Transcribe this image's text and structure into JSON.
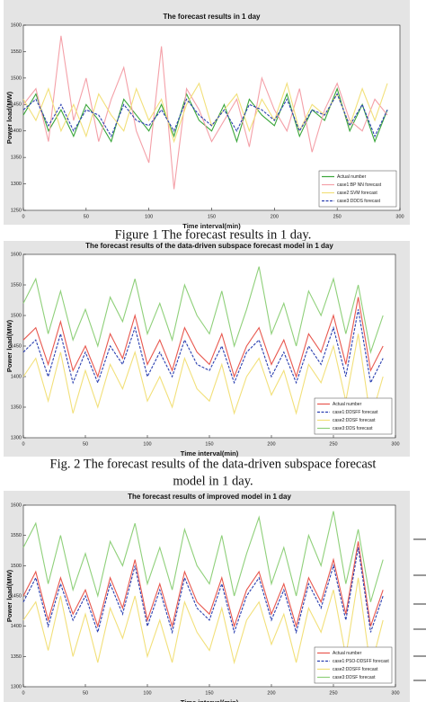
{
  "chart_data": [
    {
      "type": "line",
      "title": "The forecast results in 1 day",
      "xlabel": "Time interval(min)",
      "ylabel": "Power load(MW)",
      "caption": [
        "Figure 1 The forecast results in 1 day."
      ],
      "x": [
        0,
        10,
        20,
        30,
        40,
        50,
        60,
        70,
        80,
        90,
        100,
        110,
        120,
        130,
        140,
        150,
        160,
        170,
        180,
        190,
        200,
        210,
        220,
        230,
        240,
        250,
        260,
        270,
        280,
        290
      ],
      "xlim": [
        0,
        300
      ],
      "xticks": [
        0,
        50,
        100,
        150,
        200,
        250,
        300
      ],
      "ylim": [
        1250,
        1600
      ],
      "yticks": [
        1250,
        1300,
        1350,
        1400,
        1450,
        1500,
        1550,
        1600
      ],
      "series": [
        {
          "name": "Actual number",
          "color": "#3aa63a",
          "dash": false,
          "values": [
            1430,
            1470,
            1400,
            1440,
            1390,
            1450,
            1420,
            1380,
            1460,
            1430,
            1400,
            1450,
            1390,
            1470,
            1420,
            1400,
            1450,
            1380,
            1460,
            1430,
            1410,
            1470,
            1390,
            1440,
            1420,
            1480,
            1400,
            1450,
            1380,
            1440
          ]
        },
        {
          "name": "case1:BP NN forecast",
          "color": "#f4a0a8",
          "dash": false,
          "values": [
            1450,
            1480,
            1380,
            1580,
            1420,
            1500,
            1380,
            1460,
            1520,
            1400,
            1340,
            1560,
            1290,
            1480,
            1440,
            1380,
            1420,
            1460,
            1370,
            1500,
            1440,
            1400,
            1480,
            1360,
            1440,
            1490,
            1420,
            1400,
            1460,
            1430
          ]
        },
        {
          "name": "case2:SVM forecast",
          "color": "#f2e07a",
          "dash": false,
          "values": [
            1460,
            1420,
            1480,
            1400,
            1450,
            1390,
            1470,
            1430,
            1400,
            1480,
            1420,
            1460,
            1380,
            1450,
            1490,
            1410,
            1440,
            1470,
            1400,
            1460,
            1420,
            1490,
            1400,
            1450,
            1430,
            1470,
            1410,
            1480,
            1420,
            1490
          ]
        },
        {
          "name": "case3:DDDS forecast",
          "color": "#2a3fb0",
          "dash": true,
          "values": [
            1440,
            1460,
            1410,
            1450,
            1400,
            1440,
            1430,
            1390,
            1450,
            1420,
            1410,
            1440,
            1400,
            1460,
            1430,
            1410,
            1440,
            1400,
            1450,
            1440,
            1420,
            1460,
            1400,
            1440,
            1430,
            1470,
            1410,
            1450,
            1390,
            1440
          ]
        }
      ]
    },
    {
      "type": "line",
      "title": "The forecast results of the data-driven subspace forecast model in 1 day",
      "xlabel": "Time interval(min)",
      "ylabel": "Power load(MW)",
      "caption": [
        "Fig. 2 The forecast results of the data-driven subspace forecast",
        "model in 1 day."
      ],
      "x": [
        0,
        10,
        20,
        30,
        40,
        50,
        60,
        70,
        80,
        90,
        100,
        110,
        120,
        130,
        140,
        150,
        160,
        170,
        180,
        190,
        200,
        210,
        220,
        230,
        240,
        250,
        260,
        270,
        280,
        290
      ],
      "xlim": [
        0,
        300
      ],
      "xticks": [
        0,
        50,
        100,
        150,
        200,
        250,
        300
      ],
      "ylim": [
        1300,
        1600
      ],
      "yticks": [
        1300,
        1350,
        1400,
        1450,
        1500,
        1550,
        1600
      ],
      "series": [
        {
          "name": "Actual number",
          "color": "#e8584f",
          "dash": false,
          "values": [
            1460,
            1480,
            1420,
            1490,
            1410,
            1450,
            1400,
            1470,
            1430,
            1500,
            1420,
            1460,
            1410,
            1480,
            1440,
            1420,
            1470,
            1400,
            1450,
            1480,
            1420,
            1460,
            1400,
            1470,
            1440,
            1500,
            1420,
            1530,
            1410,
            1450
          ]
        },
        {
          "name": "case1:DDSFF forecast",
          "color": "#2a3fb0",
          "dash": true,
          "values": [
            1440,
            1460,
            1400,
            1470,
            1390,
            1440,
            1390,
            1450,
            1420,
            1480,
            1400,
            1440,
            1400,
            1460,
            1420,
            1410,
            1450,
            1390,
            1440,
            1460,
            1400,
            1440,
            1390,
            1450,
            1420,
            1480,
            1400,
            1510,
            1390,
            1430
          ]
        },
        {
          "name": "case2:DDSF forecast",
          "color": "#f2e07a",
          "dash": false,
          "values": [
            1400,
            1430,
            1360,
            1440,
            1340,
            1410,
            1350,
            1420,
            1380,
            1440,
            1360,
            1400,
            1350,
            1430,
            1380,
            1360,
            1420,
            1340,
            1400,
            1430,
            1370,
            1410,
            1340,
            1420,
            1390,
            1450,
            1360,
            1470,
            1330,
            1400
          ]
        },
        {
          "name": "case3:DDS forecast",
          "color": "#8fd07a",
          "dash": false,
          "values": [
            1520,
            1560,
            1470,
            1540,
            1460,
            1510,
            1450,
            1530,
            1490,
            1560,
            1470,
            1520,
            1460,
            1550,
            1500,
            1470,
            1540,
            1450,
            1510,
            1580,
            1470,
            1520,
            1450,
            1540,
            1500,
            1560,
            1470,
            1550,
            1440,
            1500
          ]
        }
      ]
    },
    {
      "type": "line",
      "title": "The forecast results of improved model in 1 day",
      "xlabel": "Time interval(min)",
      "ylabel": "Power load(MW)",
      "x": [
        0,
        10,
        20,
        30,
        40,
        50,
        60,
        70,
        80,
        90,
        100,
        110,
        120,
        130,
        140,
        150,
        160,
        170,
        180,
        190,
        200,
        210,
        220,
        230,
        240,
        250,
        260,
        270,
        280,
        290
      ],
      "xlim": [
        0,
        300
      ],
      "xticks": [
        0,
        50,
        100,
        150,
        200,
        250,
        300
      ],
      "ylim": [
        1300,
        1600
      ],
      "yticks": [
        1300,
        1350,
        1400,
        1450,
        1500,
        1550,
        1600
      ],
      "series": [
        {
          "name": "Actual number",
          "color": "#e8584f",
          "dash": false,
          "values": [
            1450,
            1490,
            1410,
            1480,
            1420,
            1460,
            1400,
            1480,
            1430,
            1510,
            1410,
            1470,
            1400,
            1490,
            1440,
            1420,
            1480,
            1400,
            1460,
            1490,
            1420,
            1470,
            1400,
            1480,
            1440,
            1510,
            1420,
            1540,
            1400,
            1460
          ]
        },
        {
          "name": "case1:PSO-DDSFF forecast",
          "color": "#2a3fb0",
          "dash": true,
          "values": [
            1440,
            1480,
            1400,
            1470,
            1410,
            1450,
            1390,
            1470,
            1420,
            1500,
            1400,
            1460,
            1390,
            1480,
            1430,
            1410,
            1470,
            1390,
            1450,
            1480,
            1410,
            1460,
            1390,
            1470,
            1430,
            1500,
            1410,
            1530,
            1390,
            1450
          ]
        },
        {
          "name": "case2:DDSFF forecast",
          "color": "#f2e07a",
          "dash": false,
          "values": [
            1410,
            1440,
            1360,
            1450,
            1350,
            1420,
            1340,
            1430,
            1380,
            1450,
            1350,
            1410,
            1340,
            1440,
            1390,
            1360,
            1430,
            1340,
            1410,
            1440,
            1370,
            1420,
            1340,
            1430,
            1390,
            1460,
            1350,
            1480,
            1330,
            1410
          ]
        },
        {
          "name": "case3:DDSF forecast",
          "color": "#8fd07a",
          "dash": false,
          "values": [
            1530,
            1570,
            1470,
            1550,
            1460,
            1520,
            1450,
            1540,
            1500,
            1570,
            1470,
            1530,
            1460,
            1560,
            1500,
            1470,
            1550,
            1450,
            1520,
            1580,
            1470,
            1530,
            1450,
            1550,
            1500,
            1590,
            1470,
            1560,
            1440,
            1510
          ]
        }
      ]
    }
  ]
}
